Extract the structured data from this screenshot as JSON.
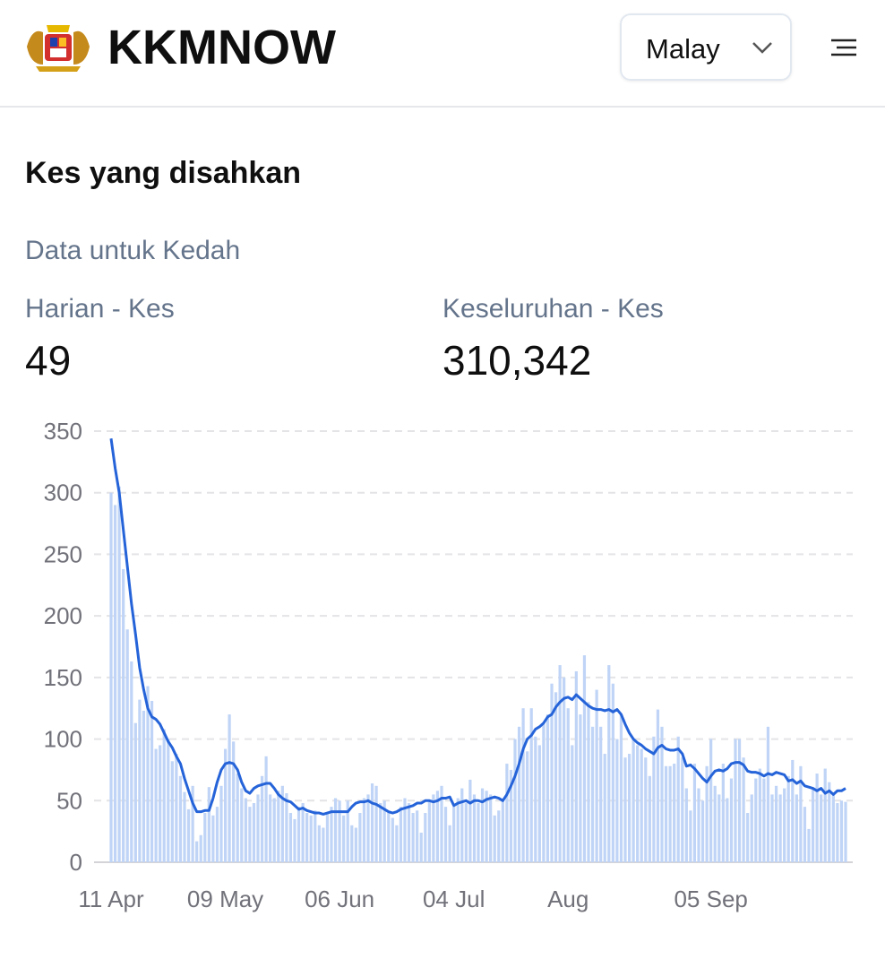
{
  "header": {
    "brand": "KKMNOW",
    "language": "Malay"
  },
  "section": {
    "title": "Kes yang disahkan",
    "subtitle": "Data untuk Kedah",
    "stats": [
      {
        "label": "Harian - Kes",
        "value": "49"
      },
      {
        "label": "Keseluruhan - Kes",
        "value": "310,342"
      }
    ]
  },
  "chart_data": {
    "type": "bar",
    "categories": [
      "11 Apr",
      null,
      null,
      null,
      null,
      null,
      null,
      null,
      null,
      null,
      null,
      null,
      null,
      null,
      null,
      null,
      null,
      null,
      null,
      null,
      null,
      null,
      null,
      null,
      null,
      null,
      null,
      null,
      "09 May",
      null,
      null,
      null,
      null,
      null,
      null,
      null,
      null,
      null,
      null,
      null,
      null,
      null,
      null,
      null,
      null,
      null,
      null,
      null,
      null,
      null,
      null,
      null,
      null,
      null,
      null,
      null,
      "06 Jun",
      null,
      null,
      null,
      null,
      null,
      null,
      null,
      null,
      null,
      null,
      null,
      null,
      null,
      null,
      null,
      null,
      null,
      null,
      null,
      null,
      null,
      null,
      null,
      null,
      null,
      null,
      null,
      "04 Jul",
      null,
      null,
      null,
      null,
      null,
      null,
      null,
      null,
      null,
      null,
      null,
      null,
      null,
      null,
      null,
      null,
      null,
      null,
      null,
      null,
      null,
      null,
      null,
      null,
      null,
      null,
      null,
      "Aug",
      null,
      null,
      null,
      null,
      null,
      null,
      null,
      null,
      null,
      null,
      null,
      null,
      null,
      null,
      null,
      null,
      null,
      null,
      null,
      null,
      null,
      null,
      null,
      null,
      null,
      null,
      null,
      null,
      null,
      null,
      null,
      null,
      null,
      null,
      "05 Sep",
      null,
      null,
      null,
      null,
      null,
      null,
      null,
      null,
      null,
      null,
      null,
      null,
      null,
      null,
      null,
      null,
      null,
      null,
      null,
      null,
      null,
      null,
      null,
      null,
      null,
      null,
      null,
      null,
      null,
      null,
      null,
      null,
      null
    ],
    "series": [
      {
        "type": "bar",
        "color": "#bfd4f6",
        "values": [
          300,
          290,
          305,
          238,
          189,
          163,
          113,
          132,
          123,
          143,
          131,
          92,
          95,
          108,
          100,
          82,
          88,
          70,
          57,
          43,
          62,
          17,
          22,
          40,
          61,
          38,
          45,
          62,
          92,
          120,
          98,
          72,
          60,
          52,
          45,
          48,
          55,
          70,
          86,
          55,
          52,
          58,
          62,
          56,
          40,
          35,
          45,
          48,
          40,
          38,
          42,
          30,
          28,
          40,
          45,
          52,
          50,
          38,
          50,
          30,
          28,
          40,
          52,
          55,
          64,
          62,
          48,
          50,
          40,
          36,
          30,
          45,
          52,
          48,
          40,
          42,
          24,
          40,
          50,
          55,
          58,
          62,
          45,
          30,
          45,
          52,
          60,
          48,
          67,
          55,
          48,
          60,
          58,
          55,
          38,
          42,
          50,
          80,
          75,
          100,
          110,
          125,
          90,
          125,
          102,
          95,
          112,
          120,
          145,
          138,
          160,
          150,
          125,
          95,
          155,
          120,
          168,
          130,
          110,
          140,
          110,
          88,
          160,
          145,
          100,
          120,
          85,
          88,
          100,
          95,
          92,
          85,
          70,
          102,
          124,
          110,
          78,
          78,
          80,
          102,
          85,
          60,
          42,
          80,
          60,
          50,
          78,
          100,
          62,
          55,
          80,
          52,
          68,
          100,
          100,
          85,
          40,
          55,
          68,
          76,
          68,
          110,
          55,
          62,
          55,
          60,
          70,
          83,
          55,
          78,
          45,
          27,
          60,
          72,
          55,
          76,
          65,
          55,
          48,
          50,
          49
        ]
      },
      {
        "type": "line",
        "color": "#2563d9",
        "values": [
          344,
          320,
          300,
          270,
          240,
          210,
          185,
          158,
          140,
          125,
          118,
          116,
          112,
          105,
          98,
          93,
          86,
          80,
          68,
          58,
          48,
          41,
          41,
          42,
          42,
          52,
          65,
          75,
          80,
          81,
          80,
          75,
          65,
          58,
          56,
          60,
          62,
          63,
          64,
          64,
          60,
          55,
          52,
          50,
          49,
          46,
          43,
          44,
          42,
          41,
          40,
          40,
          39,
          40,
          41,
          41,
          41,
          41,
          41,
          45,
          48,
          49,
          49,
          50,
          48,
          47,
          45,
          43,
          41,
          40,
          41,
          43,
          44,
          45,
          46,
          48,
          48,
          50,
          50,
          49,
          50,
          52,
          52,
          53,
          46,
          48,
          49,
          50,
          48,
          50,
          50,
          49,
          51,
          52,
          53,
          52,
          50,
          55,
          62,
          70,
          80,
          92,
          100,
          103,
          108,
          110,
          113,
          118,
          120,
          126,
          130,
          133,
          134,
          132,
          136,
          133,
          130,
          127,
          125,
          124,
          124,
          123,
          124,
          122,
          124,
          120,
          112,
          105,
          100,
          97,
          95,
          92,
          90,
          88,
          93,
          95,
          92,
          91,
          91,
          92,
          88,
          78,
          79,
          76,
          72,
          68,
          65,
          70,
          74,
          75,
          74,
          76,
          80,
          81,
          81,
          79,
          74,
          73,
          73,
          72,
          70,
          72,
          71,
          73,
          72,
          71,
          66,
          67,
          64,
          66,
          62,
          61,
          60,
          58,
          60,
          56,
          58,
          55,
          58,
          58,
          60
        ]
      }
    ],
    "ylim": [
      0,
      350
    ],
    "yticks": [
      0,
      50,
      100,
      150,
      200,
      250,
      300,
      350
    ],
    "grid": true
  }
}
